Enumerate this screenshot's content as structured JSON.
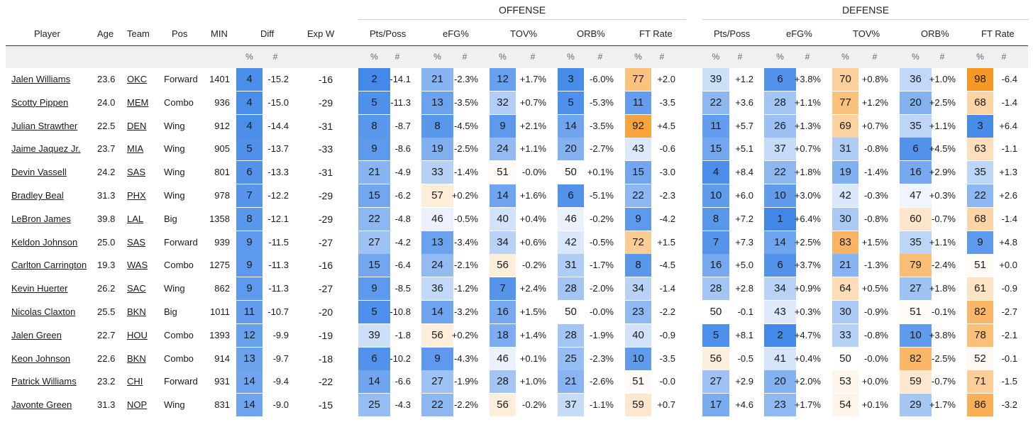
{
  "groups": {
    "offense": "OFFENSE",
    "defense": "DEFENSE"
  },
  "columns": {
    "player": "Player",
    "age": "Age",
    "team": "Team",
    "pos": "Pos",
    "min": "MIN",
    "diff": "Diff",
    "expw": "Exp W",
    "off": [
      "Pts/Poss",
      "eFG%",
      "TOV%",
      "ORB%",
      "FT Rate"
    ],
    "def": [
      "Pts/Poss",
      "eFG%",
      "TOV%",
      "ORB%",
      "FT Rate"
    ],
    "pct": "%",
    "num": "#"
  },
  "colors": {
    "blue_strong": "#3d85e8",
    "orange_strong": "#f7941d",
    "neutral": "#ffffff",
    "header_band": "#f0f0f0"
  },
  "chart_data": {
    "type": "table",
    "rows": [
      {
        "player": "Jalen Williams",
        "age": "23.6",
        "team": "OKC",
        "pos": "Forward",
        "min": "1401",
        "diff": {
          "pct": "4",
          "num": "-15.2"
        },
        "expw": "-16",
        "off": [
          {
            "pct": "2",
            "num": "-14.1"
          },
          {
            "pct": "21",
            "num": "-2.3%"
          },
          {
            "pct": "12",
            "num": "+1.7%"
          },
          {
            "pct": "3",
            "num": "-6.0%"
          },
          {
            "pct": "77",
            "num": "+2.0"
          }
        ],
        "def": [
          {
            "pct": "39",
            "num": "+1.2"
          },
          {
            "pct": "6",
            "num": "+3.8%"
          },
          {
            "pct": "70",
            "num": "+0.8%"
          },
          {
            "pct": "36",
            "num": "+1.0%"
          },
          {
            "pct": "98",
            "num": "-6.4"
          }
        ]
      },
      {
        "player": "Scotty Pippen",
        "age": "24.0",
        "team": "MEM",
        "pos": "Combo",
        "min": "936",
        "diff": {
          "pct": "4",
          "num": "-15.0"
        },
        "expw": "-29",
        "off": [
          {
            "pct": "5",
            "num": "-11.3"
          },
          {
            "pct": "13",
            "num": "-3.5%"
          },
          {
            "pct": "32",
            "num": "+0.7%"
          },
          {
            "pct": "5",
            "num": "-5.3%"
          },
          {
            "pct": "11",
            "num": "-3.5"
          }
        ],
        "def": [
          {
            "pct": "22",
            "num": "+3.6"
          },
          {
            "pct": "28",
            "num": "+1.1%"
          },
          {
            "pct": "77",
            "num": "+1.2%"
          },
          {
            "pct": "20",
            "num": "+2.5%"
          },
          {
            "pct": "68",
            "num": "-1.4"
          }
        ]
      },
      {
        "player": "Julian Strawther",
        "age": "22.5",
        "team": "DEN",
        "pos": "Wing",
        "min": "912",
        "diff": {
          "pct": "4",
          "num": "-14.4"
        },
        "expw": "-31",
        "off": [
          {
            "pct": "8",
            "num": "-8.7"
          },
          {
            "pct": "8",
            "num": "-4.5%"
          },
          {
            "pct": "9",
            "num": "+2.1%"
          },
          {
            "pct": "14",
            "num": "-3.5%"
          },
          {
            "pct": "92",
            "num": "+4.5"
          }
        ],
        "def": [
          {
            "pct": "11",
            "num": "+5.7"
          },
          {
            "pct": "26",
            "num": "+1.3%"
          },
          {
            "pct": "69",
            "num": "+0.7%"
          },
          {
            "pct": "35",
            "num": "+1.1%"
          },
          {
            "pct": "3",
            "num": "+6.4"
          }
        ]
      },
      {
        "player": "Jaime Jaquez Jr.",
        "age": "23.7",
        "team": "MIA",
        "pos": "Wing",
        "min": "905",
        "diff": {
          "pct": "5",
          "num": "-13.7"
        },
        "expw": "-33",
        "off": [
          {
            "pct": "9",
            "num": "-8.6"
          },
          {
            "pct": "19",
            "num": "-2.5%"
          },
          {
            "pct": "24",
            "num": "+1.1%"
          },
          {
            "pct": "20",
            "num": "-2.7%"
          },
          {
            "pct": "43",
            "num": "-0.6"
          }
        ],
        "def": [
          {
            "pct": "15",
            "num": "+5.1"
          },
          {
            "pct": "37",
            "num": "+0.7%"
          },
          {
            "pct": "31",
            "num": "-0.8%"
          },
          {
            "pct": "6",
            "num": "+4.5%"
          },
          {
            "pct": "63",
            "num": "-1.1"
          }
        ]
      },
      {
        "player": "Devin Vassell",
        "age": "24.2",
        "team": "SAS",
        "pos": "Wing",
        "min": "801",
        "diff": {
          "pct": "6",
          "num": "-13.3"
        },
        "expw": "-31",
        "off": [
          {
            "pct": "21",
            "num": "-4.9"
          },
          {
            "pct": "33",
            "num": "-1.4%"
          },
          {
            "pct": "51",
            "num": "-0.0%"
          },
          {
            "pct": "50",
            "num": "+0.1%"
          },
          {
            "pct": "15",
            "num": "-3.0"
          }
        ],
        "def": [
          {
            "pct": "4",
            "num": "+8.4"
          },
          {
            "pct": "22",
            "num": "+1.8%"
          },
          {
            "pct": "19",
            "num": "-1.4%"
          },
          {
            "pct": "16",
            "num": "+2.9%"
          },
          {
            "pct": "35",
            "num": "+1.3"
          }
        ]
      },
      {
        "player": "Bradley Beal",
        "age": "31.3",
        "team": "PHX",
        "pos": "Wing",
        "min": "978",
        "diff": {
          "pct": "7",
          "num": "-12.2"
        },
        "expw": "-29",
        "off": [
          {
            "pct": "15",
            "num": "-6.2"
          },
          {
            "pct": "57",
            "num": "+0.2%"
          },
          {
            "pct": "14",
            "num": "+1.6%"
          },
          {
            "pct": "6",
            "num": "-5.1%"
          },
          {
            "pct": "22",
            "num": "-2.3"
          }
        ],
        "def": [
          {
            "pct": "10",
            "num": "+6.0"
          },
          {
            "pct": "10",
            "num": "+3.0%"
          },
          {
            "pct": "42",
            "num": "-0.3%"
          },
          {
            "pct": "47",
            "num": "+0.3%"
          },
          {
            "pct": "22",
            "num": "+2.6"
          }
        ]
      },
      {
        "player": "LeBron James",
        "age": "39.8",
        "team": "LAL",
        "pos": "Big",
        "min": "1358",
        "diff": {
          "pct": "8",
          "num": "-12.1"
        },
        "expw": "-29",
        "off": [
          {
            "pct": "22",
            "num": "-4.8"
          },
          {
            "pct": "46",
            "num": "-0.5%"
          },
          {
            "pct": "40",
            "num": "+0.4%"
          },
          {
            "pct": "46",
            "num": "-0.2%"
          },
          {
            "pct": "9",
            "num": "-4.2"
          }
        ],
        "def": [
          {
            "pct": "8",
            "num": "+7.2"
          },
          {
            "pct": "1",
            "num": "+6.4%"
          },
          {
            "pct": "30",
            "num": "-0.8%"
          },
          {
            "pct": "60",
            "num": "-0.7%"
          },
          {
            "pct": "68",
            "num": "-1.4"
          }
        ]
      },
      {
        "player": "Keldon Johnson",
        "age": "25.0",
        "team": "SAS",
        "pos": "Forward",
        "min": "939",
        "diff": {
          "pct": "9",
          "num": "-11.5"
        },
        "expw": "-27",
        "off": [
          {
            "pct": "27",
            "num": "-4.2"
          },
          {
            "pct": "13",
            "num": "-3.4%"
          },
          {
            "pct": "34",
            "num": "+0.6%"
          },
          {
            "pct": "42",
            "num": "-0.5%"
          },
          {
            "pct": "72",
            "num": "+1.5"
          }
        ],
        "def": [
          {
            "pct": "7",
            "num": "+7.3"
          },
          {
            "pct": "14",
            "num": "+2.5%"
          },
          {
            "pct": "83",
            "num": "+1.5%"
          },
          {
            "pct": "35",
            "num": "+1.1%"
          },
          {
            "pct": "9",
            "num": "+4.8"
          }
        ]
      },
      {
        "player": "Carlton Carrington",
        "age": "19.3",
        "team": "WAS",
        "pos": "Combo",
        "min": "1275",
        "diff": {
          "pct": "9",
          "num": "-11.3"
        },
        "expw": "-16",
        "off": [
          {
            "pct": "15",
            "num": "-6.4"
          },
          {
            "pct": "24",
            "num": "-2.1%"
          },
          {
            "pct": "56",
            "num": "-0.2%"
          },
          {
            "pct": "31",
            "num": "-1.7%"
          },
          {
            "pct": "8",
            "num": "-4.5"
          }
        ],
        "def": [
          {
            "pct": "16",
            "num": "+5.0"
          },
          {
            "pct": "6",
            "num": "+3.7%"
          },
          {
            "pct": "21",
            "num": "-1.3%"
          },
          {
            "pct": "79",
            "num": "-2.4%"
          },
          {
            "pct": "51",
            "num": "+0.0"
          }
        ]
      },
      {
        "player": "Kevin Huerter",
        "age": "26.2",
        "team": "SAC",
        "pos": "Wing",
        "min": "862",
        "diff": {
          "pct": "9",
          "num": "-11.3"
        },
        "expw": "-27",
        "off": [
          {
            "pct": "9",
            "num": "-8.5"
          },
          {
            "pct": "36",
            "num": "-1.2%"
          },
          {
            "pct": "7",
            "num": "+2.4%"
          },
          {
            "pct": "28",
            "num": "-2.0%"
          },
          {
            "pct": "34",
            "num": "-1.4"
          }
        ],
        "def": [
          {
            "pct": "28",
            "num": "+2.8"
          },
          {
            "pct": "34",
            "num": "+0.9%"
          },
          {
            "pct": "64",
            "num": "+0.5%"
          },
          {
            "pct": "27",
            "num": "+1.8%"
          },
          {
            "pct": "61",
            "num": "-0.9"
          }
        ]
      },
      {
        "player": "Nicolas Claxton",
        "age": "25.5",
        "team": "BKN",
        "pos": "Big",
        "min": "1011",
        "diff": {
          "pct": "11",
          "num": "-10.7"
        },
        "expw": "-20",
        "off": [
          {
            "pct": "5",
            "num": "-10.8"
          },
          {
            "pct": "14",
            "num": "-3.2%"
          },
          {
            "pct": "16",
            "num": "+1.5%"
          },
          {
            "pct": "50",
            "num": "-0.0%"
          },
          {
            "pct": "23",
            "num": "-2.2"
          }
        ],
        "def": [
          {
            "pct": "50",
            "num": "-0.1"
          },
          {
            "pct": "43",
            "num": "+0.3%"
          },
          {
            "pct": "30",
            "num": "-0.9%"
          },
          {
            "pct": "51",
            "num": "-0.1%"
          },
          {
            "pct": "82",
            "num": "-2.7"
          }
        ]
      },
      {
        "player": "Jalen Green",
        "age": "22.7",
        "team": "HOU",
        "pos": "Combo",
        "min": "1393",
        "diff": {
          "pct": "12",
          "num": "-9.9"
        },
        "expw": "-19",
        "off": [
          {
            "pct": "39",
            "num": "-1.8"
          },
          {
            "pct": "56",
            "num": "+0.2%"
          },
          {
            "pct": "18",
            "num": "+1.4%"
          },
          {
            "pct": "28",
            "num": "-1.9%"
          },
          {
            "pct": "40",
            "num": "-0.9"
          }
        ],
        "def": [
          {
            "pct": "5",
            "num": "+8.1"
          },
          {
            "pct": "2",
            "num": "+4.7%"
          },
          {
            "pct": "33",
            "num": "-0.8%"
          },
          {
            "pct": "10",
            "num": "+3.8%"
          },
          {
            "pct": "78",
            "num": "-2.1"
          }
        ]
      },
      {
        "player": "Keon Johnson",
        "age": "22.6",
        "team": "BKN",
        "pos": "Combo",
        "min": "914",
        "diff": {
          "pct": "13",
          "num": "-9.7"
        },
        "expw": "-18",
        "off": [
          {
            "pct": "6",
            "num": "-10.2"
          },
          {
            "pct": "9",
            "num": "-4.3%"
          },
          {
            "pct": "46",
            "num": "+0.1%"
          },
          {
            "pct": "25",
            "num": "-2.3%"
          },
          {
            "pct": "10",
            "num": "-3.5"
          }
        ],
        "def": [
          {
            "pct": "56",
            "num": "-0.5"
          },
          {
            "pct": "41",
            "num": "+0.4%"
          },
          {
            "pct": "50",
            "num": "-0.0%"
          },
          {
            "pct": "82",
            "num": "-2.5%"
          },
          {
            "pct": "52",
            "num": "-0.1"
          }
        ]
      },
      {
        "player": "Patrick Williams",
        "age": "23.2",
        "team": "CHI",
        "pos": "Forward",
        "min": "931",
        "diff": {
          "pct": "14",
          "num": "-9.4"
        },
        "expw": "-22",
        "off": [
          {
            "pct": "14",
            "num": "-6.6"
          },
          {
            "pct": "27",
            "num": "-1.9%"
          },
          {
            "pct": "28",
            "num": "+1.0%"
          },
          {
            "pct": "21",
            "num": "-2.6%"
          },
          {
            "pct": "51",
            "num": "-0.0"
          }
        ],
        "def": [
          {
            "pct": "27",
            "num": "+2.9"
          },
          {
            "pct": "20",
            "num": "+2.0%"
          },
          {
            "pct": "53",
            "num": "+0.0%"
          },
          {
            "pct": "59",
            "num": "-0.7%"
          },
          {
            "pct": "71",
            "num": "-1.5"
          }
        ]
      },
      {
        "player": "Javonte Green",
        "age": "31.3",
        "team": "NOP",
        "pos": "Wing",
        "min": "831",
        "diff": {
          "pct": "14",
          "num": "-9.0"
        },
        "expw": "-15",
        "off": [
          {
            "pct": "25",
            "num": "-4.3"
          },
          {
            "pct": "22",
            "num": "-2.2%"
          },
          {
            "pct": "56",
            "num": "-0.2%"
          },
          {
            "pct": "37",
            "num": "-1.1%"
          },
          {
            "pct": "59",
            "num": "+0.7"
          }
        ],
        "def": [
          {
            "pct": "17",
            "num": "+4.6"
          },
          {
            "pct": "23",
            "num": "+1.7%"
          },
          {
            "pct": "54",
            "num": "+0.1%"
          },
          {
            "pct": "29",
            "num": "+1.7%"
          },
          {
            "pct": "86",
            "num": "-3.2"
          }
        ]
      }
    ]
  }
}
